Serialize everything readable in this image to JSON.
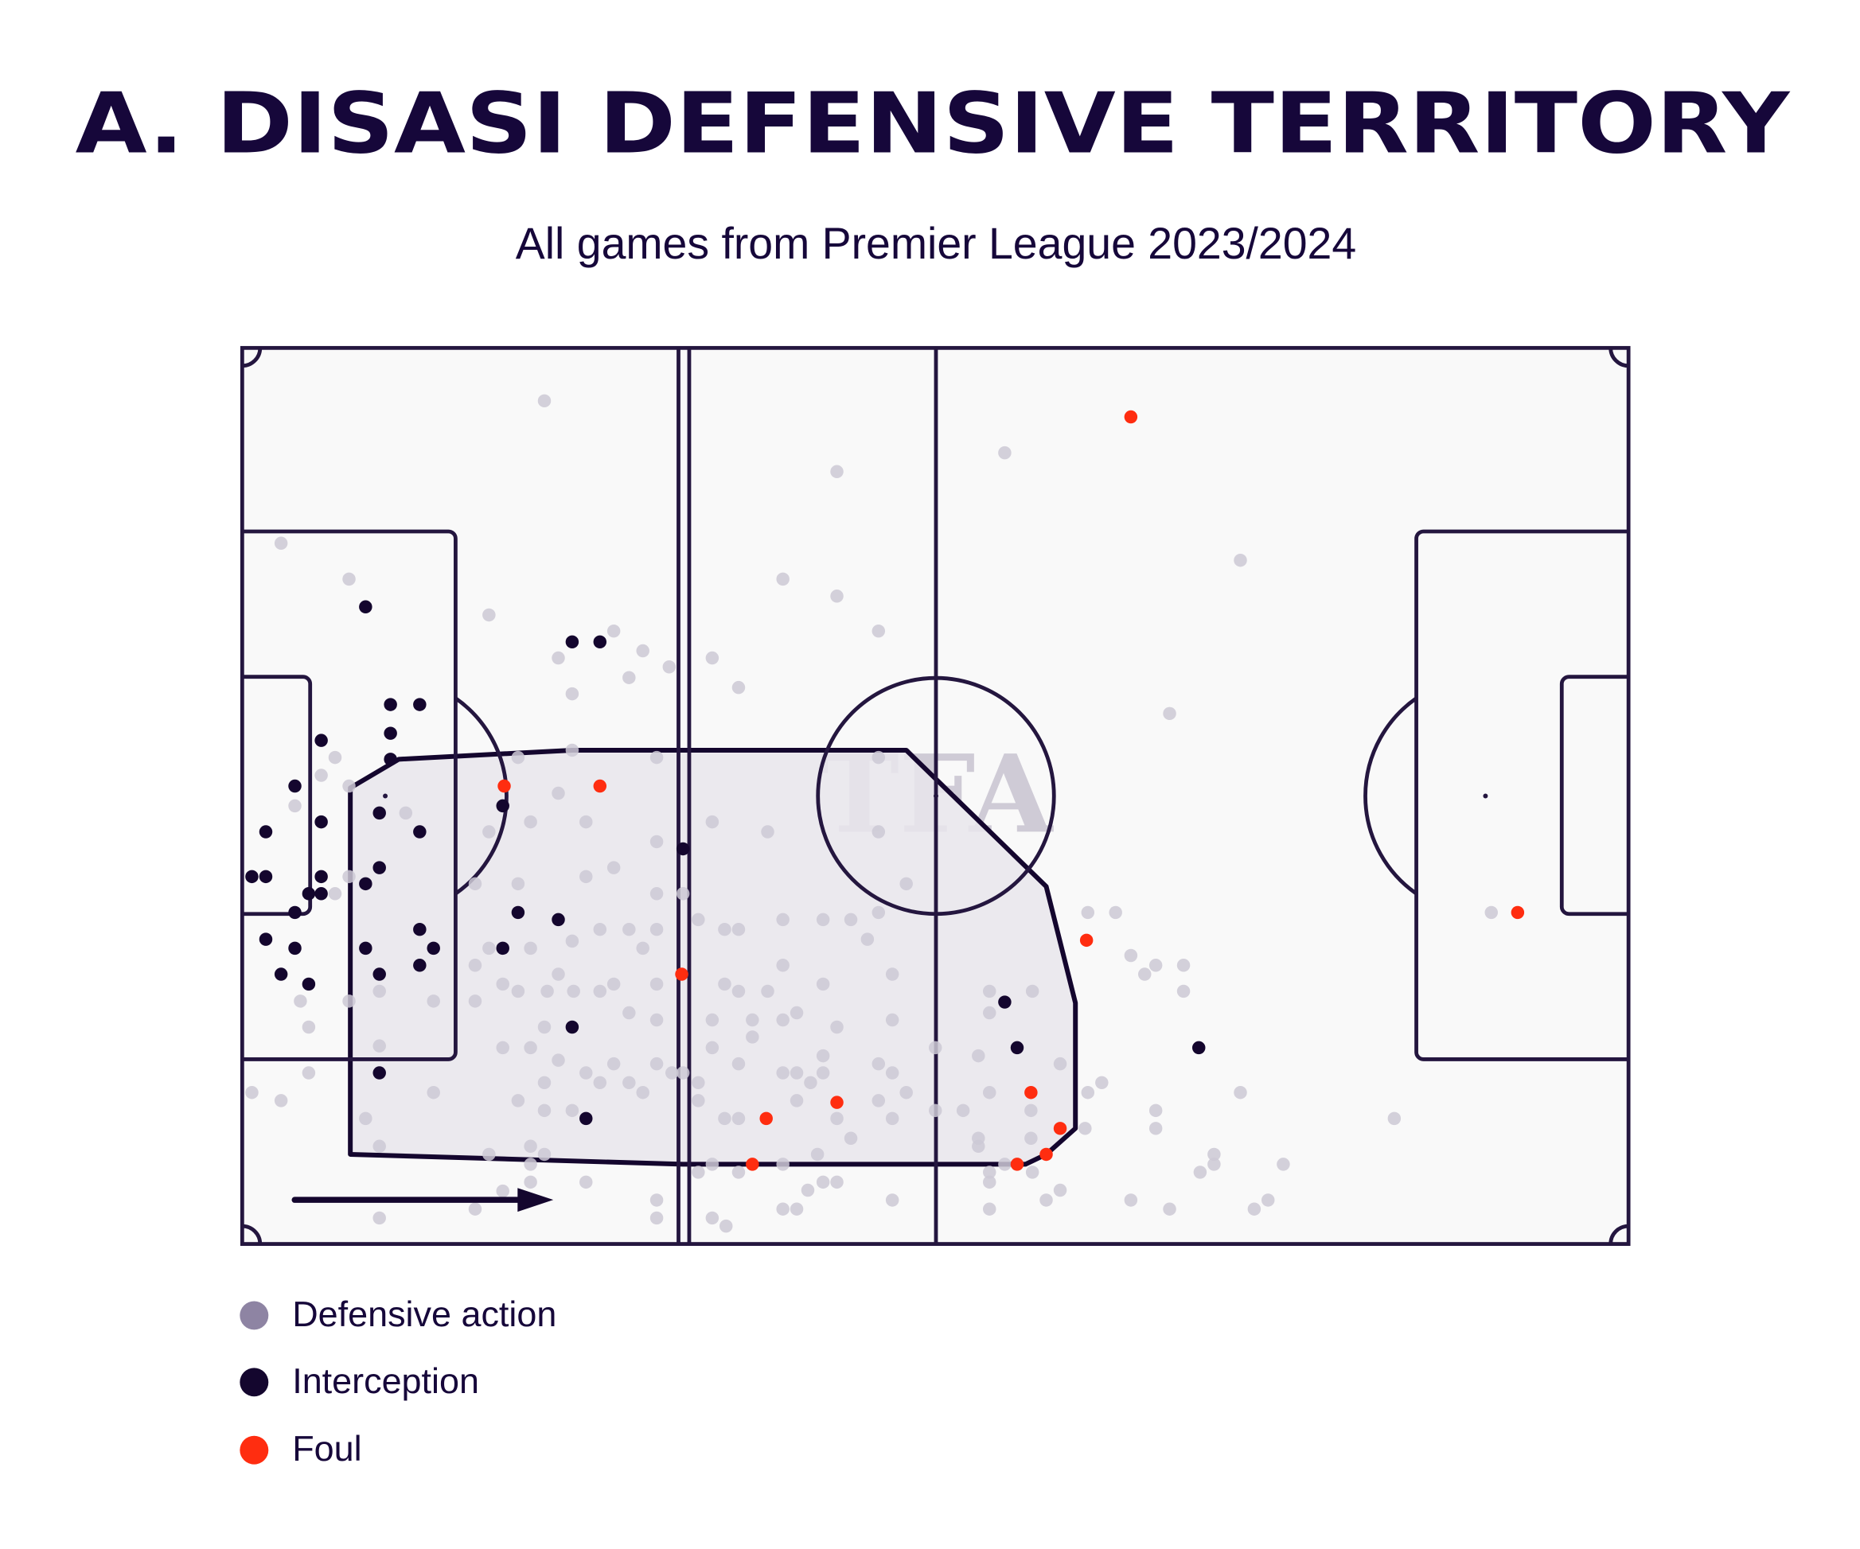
{
  "title": "A. DISASI DEFENSIVE TERRITORY",
  "subtitle": "All games from Premier League 2023/2024",
  "watermark": "TFA",
  "legend": [
    {
      "label": "Defensive action",
      "color": "#8e84a3"
    },
    {
      "label": "Interception",
      "color": "#14062e"
    },
    {
      "label": "Foul",
      "color": "#ff2d10"
    }
  ],
  "colors": {
    "defensive_action_point": "#cdc9d5",
    "interception": "#14062e",
    "foul": "#ff2d10",
    "territory_fill": "#e9e6ec",
    "territory_line": "#14062e",
    "pitch_bg": "#f9f9f9"
  },
  "chart_data": {
    "type": "scatter",
    "title": "A. DISASI DEFENSIVE TERRITORY",
    "subtitle": "All games from Premier League 2023/2024",
    "pitch": "football pitch, attacking left to right",
    "xlim": [
      0,
      100
    ],
    "ylim": [
      0,
      100
    ],
    "legend_position": "bottom-left",
    "territory_polygon": [
      [
        7.8,
        49.1
      ],
      [
        11.3,
        45.9
      ],
      [
        23.8,
        44.9
      ],
      [
        47.9,
        44.9
      ],
      [
        58.0,
        60.1
      ],
      [
        60.1,
        73.1
      ],
      [
        60.1,
        87.1
      ],
      [
        58.0,
        90.0
      ],
      [
        56.5,
        91.1
      ],
      [
        31.8,
        91.1
      ],
      [
        7.8,
        90.0
      ]
    ],
    "series": [
      {
        "name": "Defensive action",
        "points": [
          [
            21.8,
            5.9
          ],
          [
            55.0,
            11.7
          ],
          [
            42.9,
            13.8
          ],
          [
            72.0,
            23.7
          ],
          [
            2.8,
            21.8
          ],
          [
            7.7,
            25.8
          ],
          [
            39.0,
            25.8
          ],
          [
            42.9,
            27.7
          ],
          [
            17.8,
            29.8
          ],
          [
            26.8,
            31.6
          ],
          [
            45.9,
            31.6
          ],
          [
            22.8,
            34.6
          ],
          [
            28.9,
            33.8
          ],
          [
            33.9,
            34.6
          ],
          [
            27.9,
            36.8
          ],
          [
            30.8,
            35.6
          ],
          [
            23.8,
            38.6
          ],
          [
            35.8,
            37.9
          ],
          [
            66.9,
            40.8
          ],
          [
            6.7,
            45.7
          ],
          [
            23.8,
            44.9
          ],
          [
            29.9,
            45.7
          ],
          [
            19.9,
            45.7
          ],
          [
            45.9,
            45.7
          ],
          [
            5.7,
            47.7
          ],
          [
            7.7,
            48.9
          ],
          [
            22.8,
            49.7
          ],
          [
            3.8,
            51.1
          ],
          [
            11.8,
            51.9
          ],
          [
            24.8,
            52.9
          ],
          [
            20.8,
            52.9
          ],
          [
            33.9,
            52.9
          ],
          [
            37.9,
            54.0
          ],
          [
            45.9,
            54.0
          ],
          [
            17.8,
            54.0
          ],
          [
            29.9,
            55.1
          ],
          [
            26.8,
            58.0
          ],
          [
            24.8,
            59.0
          ],
          [
            19.9,
            59.8
          ],
          [
            16.8,
            59.8
          ],
          [
            29.9,
            60.9
          ],
          [
            7.7,
            59.0
          ],
          [
            6.7,
            60.9
          ],
          [
            31.8,
            60.9
          ],
          [
            47.9,
            59.8
          ],
          [
            61.0,
            63.0
          ],
          [
            63.0,
            63.0
          ],
          [
            90.1,
            63.0
          ],
          [
            32.9,
            63.8
          ],
          [
            39.0,
            63.8
          ],
          [
            41.9,
            63.8
          ],
          [
            43.9,
            63.8
          ],
          [
            45.9,
            63.0
          ],
          [
            27.9,
            64.9
          ],
          [
            29.9,
            64.9
          ],
          [
            23.8,
            66.2
          ],
          [
            25.8,
            64.9
          ],
          [
            34.8,
            64.9
          ],
          [
            35.8,
            64.9
          ],
          [
            28.9,
            67.0
          ],
          [
            17.8,
            67.0
          ],
          [
            20.8,
            67.0
          ],
          [
            45.1,
            66.0
          ],
          [
            64.1,
            67.8
          ],
          [
            65.9,
            68.9
          ],
          [
            67.9,
            68.9
          ],
          [
            65.1,
            69.9
          ],
          [
            22.8,
            69.9
          ],
          [
            16.8,
            68.9
          ],
          [
            18.8,
            71.0
          ],
          [
            19.9,
            71.8
          ],
          [
            22.0,
            71.8
          ],
          [
            26.8,
            71.0
          ],
          [
            23.9,
            71.8
          ],
          [
            29.9,
            71.0
          ],
          [
            34.8,
            71.0
          ],
          [
            35.8,
            71.8
          ],
          [
            37.9,
            71.8
          ],
          [
            39.0,
            68.9
          ],
          [
            41.9,
            71.0
          ],
          [
            46.9,
            69.9
          ],
          [
            53.9,
            71.8
          ],
          [
            57.0,
            71.8
          ],
          [
            67.9,
            71.8
          ],
          [
            7.7,
            72.9
          ],
          [
            4.2,
            72.9
          ],
          [
            9.9,
            71.8
          ],
          [
            13.8,
            72.9
          ],
          [
            16.8,
            72.9
          ],
          [
            25.8,
            71.8
          ],
          [
            27.9,
            74.2
          ],
          [
            21.8,
            75.8
          ],
          [
            29.9,
            75.0
          ],
          [
            33.9,
            75.0
          ],
          [
            36.8,
            75.0
          ],
          [
            39.0,
            75.0
          ],
          [
            40.0,
            74.2
          ],
          [
            46.9,
            75.0
          ],
          [
            42.9,
            75.8
          ],
          [
            53.9,
            74.2
          ],
          [
            4.8,
            75.8
          ],
          [
            9.9,
            77.9
          ],
          [
            18.8,
            78.1
          ],
          [
            20.8,
            78.1
          ],
          [
            22.8,
            79.5
          ],
          [
            26.8,
            79.9
          ],
          [
            29.9,
            79.9
          ],
          [
            33.9,
            78.1
          ],
          [
            36.8,
            76.9
          ],
          [
            41.9,
            79.0
          ],
          [
            45.9,
            79.9
          ],
          [
            50.0,
            78.1
          ],
          [
            53.1,
            79.0
          ],
          [
            59.0,
            79.9
          ],
          [
            0.7,
            83.1
          ],
          [
            2.8,
            84.0
          ],
          [
            4.8,
            80.9
          ],
          [
            8.9,
            86.0
          ],
          [
            13.8,
            83.1
          ],
          [
            19.9,
            84.0
          ],
          [
            21.8,
            82.0
          ],
          [
            24.8,
            80.9
          ],
          [
            25.8,
            82.0
          ],
          [
            27.9,
            82.0
          ],
          [
            28.9,
            83.1
          ],
          [
            31.0,
            80.9
          ],
          [
            31.8,
            80.9
          ],
          [
            32.9,
            82.0
          ],
          [
            35.8,
            79.9
          ],
          [
            39.0,
            80.9
          ],
          [
            40.0,
            80.9
          ],
          [
            41.9,
            80.9
          ],
          [
            41.0,
            82.0
          ],
          [
            46.9,
            80.9
          ],
          [
            47.9,
            83.1
          ],
          [
            53.9,
            83.1
          ],
          [
            62.0,
            82.0
          ],
          [
            61.0,
            83.1
          ],
          [
            72.0,
            83.1
          ],
          [
            21.8,
            85.1
          ],
          [
            23.8,
            85.1
          ],
          [
            32.9,
            84.0
          ],
          [
            34.8,
            86.0
          ],
          [
            35.8,
            86.0
          ],
          [
            40.0,
            84.0
          ],
          [
            42.9,
            86.0
          ],
          [
            45.9,
            84.0
          ],
          [
            46.9,
            86.0
          ],
          [
            50.0,
            85.1
          ],
          [
            52.0,
            85.1
          ],
          [
            56.9,
            85.1
          ],
          [
            65.9,
            85.1
          ],
          [
            83.1,
            86.0
          ],
          [
            60.8,
            87.1
          ],
          [
            53.1,
            88.2
          ],
          [
            20.8,
            89.1
          ],
          [
            21.8,
            90.0
          ],
          [
            9.9,
            89.1
          ],
          [
            43.9,
            88.2
          ],
          [
            41.5,
            90.0
          ],
          [
            53.1,
            89.1
          ],
          [
            56.9,
            88.2
          ],
          [
            65.9,
            87.1
          ],
          [
            70.1,
            90.0
          ],
          [
            75.1,
            91.1
          ],
          [
            17.8,
            90.0
          ],
          [
            20.8,
            91.1
          ],
          [
            33.9,
            91.1
          ],
          [
            39.0,
            91.1
          ],
          [
            35.8,
            92.0
          ],
          [
            32.9,
            92.0
          ],
          [
            24.8,
            93.1
          ],
          [
            20.8,
            93.1
          ],
          [
            18.8,
            94.1
          ],
          [
            41.9,
            93.1
          ],
          [
            42.9,
            93.1
          ],
          [
            53.9,
            92.0
          ],
          [
            55.0,
            91.1
          ],
          [
            57.0,
            92.0
          ],
          [
            59.0,
            94.0
          ],
          [
            58.0,
            95.1
          ],
          [
            69.1,
            92.0
          ],
          [
            70.1,
            91.1
          ],
          [
            53.9,
            93.1
          ],
          [
            40.8,
            94.0
          ],
          [
            29.9,
            95.1
          ],
          [
            16.8,
            96.1
          ],
          [
            9.9,
            97.1
          ],
          [
            29.9,
            97.1
          ],
          [
            33.9,
            97.1
          ],
          [
            34.9,
            98.0
          ],
          [
            39.0,
            96.1
          ],
          [
            40.0,
            96.1
          ],
          [
            46.9,
            95.1
          ],
          [
            53.9,
            96.1
          ],
          [
            64.1,
            95.1
          ],
          [
            66.9,
            96.1
          ],
          [
            73.0,
            96.1
          ],
          [
            74.0,
            95.1
          ]
        ]
      },
      {
        "name": "Interception",
        "points": [
          [
            8.9,
            28.9
          ],
          [
            23.8,
            32.8
          ],
          [
            25.8,
            32.8
          ],
          [
            10.7,
            39.8
          ],
          [
            12.8,
            39.8
          ],
          [
            10.7,
            43.0
          ],
          [
            5.7,
            43.8
          ],
          [
            10.7,
            45.9
          ],
          [
            3.8,
            48.9
          ],
          [
            18.8,
            51.1
          ],
          [
            9.9,
            51.9
          ],
          [
            5.7,
            52.9
          ],
          [
            12.8,
            54.0
          ],
          [
            1.7,
            54.0
          ],
          [
            0.7,
            59.0
          ],
          [
            1.7,
            59.0
          ],
          [
            9.9,
            58.0
          ],
          [
            5.7,
            59.0
          ],
          [
            8.9,
            59.8
          ],
          [
            4.8,
            60.9
          ],
          [
            5.7,
            60.9
          ],
          [
            3.8,
            63.0
          ],
          [
            19.9,
            63.0
          ],
          [
            22.8,
            63.8
          ],
          [
            12.8,
            64.9
          ],
          [
            1.7,
            66.0
          ],
          [
            3.8,
            67.0
          ],
          [
            8.9,
            67.0
          ],
          [
            13.8,
            67.0
          ],
          [
            18.8,
            67.0
          ],
          [
            12.8,
            68.9
          ],
          [
            2.8,
            69.9
          ],
          [
            9.9,
            69.9
          ],
          [
            4.8,
            71.0
          ],
          [
            23.8,
            75.8
          ],
          [
            9.9,
            80.9
          ],
          [
            24.8,
            86.0
          ],
          [
            31.8,
            55.9
          ],
          [
            55.0,
            73.0
          ],
          [
            55.9,
            78.1
          ],
          [
            69.0,
            78.1
          ]
        ]
      },
      {
        "name": "Foul",
        "points": [
          [
            64.1,
            7.7
          ],
          [
            18.9,
            48.9
          ],
          [
            25.8,
            48.9
          ],
          [
            60.9,
            66.1
          ],
          [
            31.7,
            69.9
          ],
          [
            56.9,
            83.1
          ],
          [
            42.9,
            84.2
          ],
          [
            37.8,
            86.0
          ],
          [
            59.0,
            87.1
          ],
          [
            58.0,
            90.0
          ],
          [
            55.9,
            91.1
          ],
          [
            36.8,
            91.1
          ],
          [
            92.0,
            63.0
          ]
        ]
      }
    ]
  }
}
